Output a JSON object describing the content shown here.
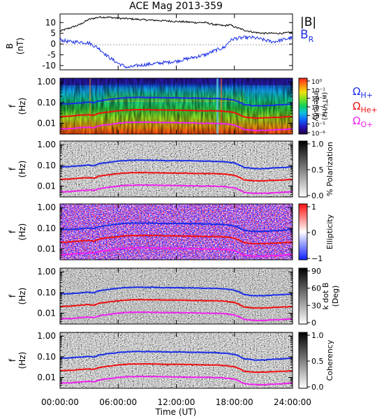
{
  "title": "ACE Mag 2013-359",
  "colors": {
    "h_plus": "#1a2ee6",
    "he_plus": "#ee1111",
    "o_plus": "#ee22ee",
    "b_total": "#000000",
    "b_r": "#1a2ee6"
  },
  "time_axis": {
    "label": "Time (UT)",
    "ticks": [
      "00:00:00",
      "06:00:00",
      "12:00:00",
      "18:00:00",
      "24:00:00"
    ]
  },
  "panels": [
    {
      "id": "mag",
      "ylabel_line1": "B",
      "ylabel_line2": "(nT)",
      "yticks": [
        "10",
        "5",
        "0",
        "-5",
        "-10"
      ],
      "legend_b": "|B|",
      "legend_br_main": "B",
      "legend_br_sub": "R"
    },
    {
      "id": "intensity",
      "ylabel_line1": "f",
      "ylabel_line2": "(Hz)",
      "yticks": [
        "1.00",
        "0.10",
        "0.01"
      ],
      "cbar_label_line1": "Intensity",
      "cbar_label_line2": "(nT²/Hz)",
      "cbar_ticks": [
        "10⁰",
        "10⁻¹",
        "10⁻²",
        "10⁻³",
        "10⁻⁴",
        "10⁻⁵",
        "10⁻⁶"
      ],
      "omega_h": "Ω",
      "omega_h_sub": "H+",
      "omega_he": "Ω",
      "omega_he_sub": "He+",
      "omega_o": "Ω",
      "omega_o_sub": "O+"
    },
    {
      "id": "polarization",
      "ylabel_line1": "f",
      "ylabel_line2": "(Hz)",
      "yticks": [
        "1.00",
        "0.10",
        "0.01"
      ],
      "cbar_label": "% Polarization",
      "cbar_ticks": [
        "1.0",
        "0.5",
        "0.0"
      ]
    },
    {
      "id": "ellipticity",
      "ylabel_line1": "f",
      "ylabel_line2": "(Hz)",
      "yticks": [
        "1.00",
        "0.10",
        "0.01"
      ],
      "cbar_label": "Ellipticity",
      "cbar_ticks": [
        "1",
        "0",
        "−1"
      ]
    },
    {
      "id": "kdotb",
      "ylabel_line1": "f",
      "ylabel_line2": "(Hz)",
      "yticks": [
        "1.00",
        "0.10",
        "0.01"
      ],
      "cbar_label_line1": "k dot B",
      "cbar_label_line2": "(Deg)",
      "cbar_ticks": [
        "90",
        "60",
        "30",
        "0"
      ]
    },
    {
      "id": "coherency",
      "ylabel_line1": "f",
      "ylabel_line2": "(Hz)",
      "yticks": [
        "1.00",
        "0.10",
        "0.01"
      ],
      "cbar_label": "Coherency",
      "cbar_ticks": [
        "1.0",
        "0.5",
        "0.0"
      ]
    }
  ],
  "chart_data": {
    "type": "line",
    "title": "ACE Mag 2013-359",
    "xlabel": "Time (UT)",
    "xlim_hours": [
      0,
      24
    ],
    "mag": {
      "ylabel": "B (nT)",
      "ylim": [
        -12,
        14
      ],
      "hours": [
        0,
        1,
        2,
        3,
        4,
        5,
        6,
        7,
        8,
        9,
        10,
        11,
        12,
        13,
        14,
        15,
        16,
        17,
        17.5,
        18,
        19,
        20,
        21,
        22,
        23,
        24
      ],
      "series": [
        {
          "name": "|B|",
          "values": [
            6,
            7.5,
            9,
            11.5,
            12.5,
            12.5,
            12,
            11.8,
            11.5,
            11.2,
            11,
            10.8,
            10.5,
            10.3,
            10,
            10,
            9,
            8.5,
            9,
            8,
            6.5,
            5.5,
            5,
            5,
            5,
            5.5
          ]
        },
        {
          "name": "B_R",
          "values": [
            2,
            1,
            1,
            0.5,
            -2,
            -6,
            -9,
            -11,
            -10,
            -9.5,
            -9,
            -8.5,
            -8,
            -7,
            -6,
            -5,
            -3,
            -1.5,
            1.5,
            2.5,
            3,
            3,
            2,
            1,
            2,
            3
          ]
        }
      ]
    },
    "frequency_panels": {
      "ylim_hz": [
        0.003,
        1.5
      ],
      "yscale": "log",
      "hours": [
        0,
        1,
        2,
        3,
        3.5,
        4,
        5,
        6,
        7,
        8,
        9,
        10,
        11,
        12,
        13,
        14,
        15,
        16,
        17,
        18,
        19,
        20,
        21,
        22,
        23,
        24
      ],
      "series": [
        {
          "name": "ΩH+",
          "values_hz": [
            0.085,
            0.088,
            0.095,
            0.105,
            0.095,
            0.12,
            0.14,
            0.16,
            0.175,
            0.178,
            0.178,
            0.175,
            0.17,
            0.17,
            0.168,
            0.165,
            0.16,
            0.158,
            0.15,
            0.13,
            0.08,
            0.07,
            0.07,
            0.075,
            0.08,
            0.085
          ]
        },
        {
          "name": "ΩHe+",
          "values_hz": [
            0.021,
            0.022,
            0.024,
            0.026,
            0.024,
            0.03,
            0.035,
            0.04,
            0.044,
            0.045,
            0.045,
            0.044,
            0.043,
            0.043,
            0.042,
            0.041,
            0.04,
            0.04,
            0.038,
            0.033,
            0.02,
            0.018,
            0.018,
            0.019,
            0.02,
            0.021
          ]
        },
        {
          "name": "ΩO+",
          "values_hz": [
            0.0053,
            0.0055,
            0.006,
            0.0065,
            0.006,
            0.0075,
            0.0087,
            0.01,
            0.011,
            0.0112,
            0.0112,
            0.011,
            0.0107,
            0.0107,
            0.0105,
            0.0103,
            0.01,
            0.0099,
            0.0095,
            0.0082,
            0.005,
            0.0045,
            0.0045,
            0.0047,
            0.005,
            0.0053
          ]
        }
      ]
    },
    "colorbars": {
      "intensity": {
        "label": "Intensity (nT²/Hz)",
        "range": [
          1e-06,
          1
        ],
        "scale": "log"
      },
      "polarization": {
        "label": "% Polarization",
        "range": [
          0,
          1
        ]
      },
      "ellipticity": {
        "label": "Ellipticity",
        "range": [
          -1,
          1
        ]
      },
      "kdotb": {
        "label": "k dot B (Deg)",
        "range": [
          0,
          90
        ]
      },
      "coherency": {
        "label": "Coherency",
        "range": [
          0,
          1
        ]
      }
    }
  }
}
